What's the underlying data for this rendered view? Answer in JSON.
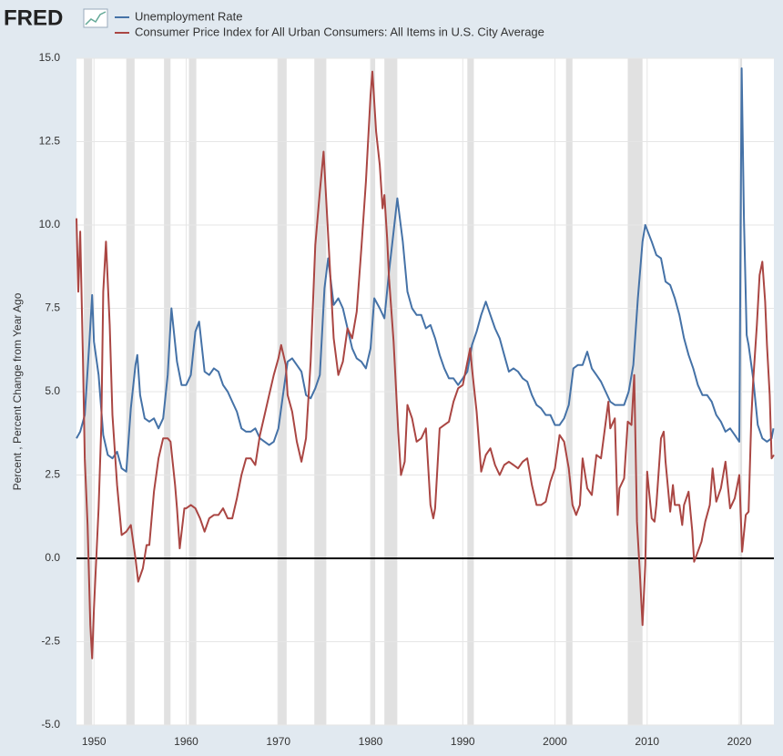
{
  "chart_data": {
    "type": "line",
    "logo": "FRED",
    "y_axis_label": "Percent , Percent Change from Year Ago",
    "xlim": [
      1948.1,
      2023.75
    ],
    "xticks": [
      1950,
      1960,
      1970,
      1980,
      1990,
      2000,
      2010,
      2020
    ],
    "ylim": [
      -5,
      15
    ],
    "yticks": [
      {
        "value": -5,
        "label": "-5.0"
      },
      {
        "value": -2.5,
        "label": "-2.5"
      },
      {
        "value": 0,
        "label": "0.0"
      },
      {
        "value": 2.5,
        "label": "2.5"
      },
      {
        "value": 5,
        "label": "5.0"
      },
      {
        "value": 7.5,
        "label": "7.5"
      },
      {
        "value": 10,
        "label": "10.0"
      },
      {
        "value": 12.5,
        "label": "12.5"
      },
      {
        "value": 15,
        "label": "15.0"
      }
    ],
    "grid": true,
    "recession_color": "#e1e1e1",
    "recessions": [
      [
        1948.9,
        1949.8
      ],
      [
        1953.5,
        1954.4
      ],
      [
        1957.6,
        1958.3
      ],
      [
        1960.3,
        1961.1
      ],
      [
        1969.9,
        1970.9
      ],
      [
        1973.9,
        1975.2
      ],
      [
        1980.0,
        1980.5
      ],
      [
        1981.5,
        1982.9
      ],
      [
        1990.5,
        1991.2
      ],
      [
        2001.2,
        2001.9
      ],
      [
        2007.9,
        2009.5
      ],
      [
        2020.1,
        2020.3
      ]
    ],
    "series": [
      {
        "name": "Unemployment Rate",
        "color": "#4572a7",
        "x": [
          1948.1,
          1948.5,
          1949.0,
          1949.5,
          1949.8,
          1950.0,
          1950.5,
          1951.0,
          1951.5,
          1952.0,
          1952.5,
          1953.0,
          1953.5,
          1954.0,
          1954.5,
          1954.7,
          1955.0,
          1955.5,
          1956.0,
          1956.5,
          1957.0,
          1957.5,
          1958.0,
          1958.4,
          1959.0,
          1959.5,
          1960.0,
          1960.5,
          1961.0,
          1961.4,
          1962.0,
          1962.5,
          1963.0,
          1963.5,
          1964.0,
          1964.5,
          1965.0,
          1965.5,
          1966.0,
          1966.5,
          1967.0,
          1967.5,
          1968.0,
          1968.5,
          1969.0,
          1969.5,
          1970.0,
          1970.5,
          1971.0,
          1971.5,
          1972.0,
          1972.5,
          1973.0,
          1973.5,
          1974.0,
          1974.5,
          1975.0,
          1975.4,
          1976.0,
          1976.5,
          1977.0,
          1977.5,
          1978.0,
          1978.5,
          1979.0,
          1979.5,
          1980.0,
          1980.4,
          1981.0,
          1981.5,
          1982.0,
          1982.5,
          1982.9,
          1983.5,
          1984.0,
          1984.5,
          1985.0,
          1985.5,
          1986.0,
          1986.5,
          1987.0,
          1987.5,
          1988.0,
          1988.5,
          1989.0,
          1989.5,
          1990.0,
          1990.5,
          1991.0,
          1991.5,
          1992.0,
          1992.5,
          1993.0,
          1993.5,
          1994.0,
          1994.5,
          1995.0,
          1995.5,
          1996.0,
          1996.5,
          1997.0,
          1997.5,
          1998.0,
          1998.5,
          1999.0,
          1999.5,
          2000.0,
          2000.5,
          2001.0,
          2001.5,
          2002.0,
          2002.5,
          2003.0,
          2003.5,
          2004.0,
          2004.5,
          2005.0,
          2005.5,
          2006.0,
          2006.5,
          2007.0,
          2007.5,
          2008.0,
          2008.5,
          2009.0,
          2009.5,
          2009.8,
          2010.5,
          2011.0,
          2011.5,
          2012.0,
          2012.5,
          2013.0,
          2013.5,
          2014.0,
          2014.5,
          2015.0,
          2015.5,
          2016.0,
          2016.5,
          2017.0,
          2017.5,
          2018.0,
          2018.5,
          2019.0,
          2019.5,
          2020.0,
          2020.25,
          2020.5,
          2020.8,
          2021.0,
          2021.5,
          2022.0,
          2022.5,
          2023.0,
          2023.5,
          2023.7
        ],
        "values": [
          3.6,
          3.8,
          4.3,
          6.5,
          7.9,
          6.5,
          5.5,
          3.7,
          3.1,
          3.0,
          3.2,
          2.7,
          2.6,
          4.5,
          5.8,
          6.1,
          4.9,
          4.2,
          4.1,
          4.2,
          3.9,
          4.2,
          5.5,
          7.5,
          5.9,
          5.2,
          5.2,
          5.5,
          6.8,
          7.1,
          5.6,
          5.5,
          5.7,
          5.6,
          5.2,
          5.0,
          4.7,
          4.4,
          3.9,
          3.8,
          3.8,
          3.9,
          3.6,
          3.5,
          3.4,
          3.5,
          3.9,
          4.9,
          5.9,
          6.0,
          5.8,
          5.6,
          4.9,
          4.8,
          5.1,
          5.5,
          8.1,
          9.0,
          7.6,
          7.8,
          7.5,
          6.9,
          6.3,
          6.0,
          5.9,
          5.7,
          6.3,
          7.8,
          7.5,
          7.2,
          8.6,
          9.8,
          10.8,
          9.5,
          8.0,
          7.5,
          7.3,
          7.3,
          6.9,
          7.0,
          6.6,
          6.1,
          5.7,
          5.4,
          5.4,
          5.2,
          5.4,
          5.6,
          6.4,
          6.8,
          7.3,
          7.7,
          7.3,
          6.9,
          6.6,
          6.1,
          5.6,
          5.7,
          5.6,
          5.4,
          5.3,
          4.9,
          4.6,
          4.5,
          4.3,
          4.3,
          4.0,
          4.0,
          4.2,
          4.6,
          5.7,
          5.8,
          5.8,
          6.2,
          5.7,
          5.5,
          5.3,
          5.0,
          4.7,
          4.6,
          4.6,
          4.6,
          5.0,
          5.8,
          7.8,
          9.5,
          10.0,
          9.5,
          9.1,
          9.0,
          8.3,
          8.2,
          7.8,
          7.3,
          6.6,
          6.1,
          5.7,
          5.2,
          4.9,
          4.9,
          4.7,
          4.3,
          4.1,
          3.8,
          3.9,
          3.7,
          3.5,
          14.7,
          10.2,
          6.7,
          6.4,
          5.4,
          4.0,
          3.6,
          3.5,
          3.6,
          3.9
        ]
      },
      {
        "name": "Consumer Price Index for All Urban Consumers: All Items in U.S. City Average",
        "color": "#aa4643",
        "x": [
          1948.1,
          1948.3,
          1948.5,
          1948.8,
          1949.0,
          1949.3,
          1949.6,
          1949.8,
          1950.0,
          1950.5,
          1950.8,
          1951.0,
          1951.3,
          1951.7,
          1952.0,
          1952.5,
          1953.0,
          1953.5,
          1954.0,
          1954.5,
          1954.8,
          1955.3,
          1955.7,
          1956.0,
          1956.5,
          1957.0,
          1957.5,
          1958.0,
          1958.3,
          1958.8,
          1959.0,
          1959.3,
          1959.8,
          1960.0,
          1960.5,
          1961.0,
          1961.5,
          1962.0,
          1962.5,
          1963.0,
          1963.5,
          1964.0,
          1964.5,
          1965.0,
          1965.5,
          1966.0,
          1966.5,
          1967.0,
          1967.5,
          1968.0,
          1968.5,
          1969.0,
          1969.5,
          1970.0,
          1970.3,
          1970.8,
          1971.0,
          1971.5,
          1972.0,
          1972.5,
          1973.0,
          1973.5,
          1974.0,
          1974.5,
          1974.9,
          1975.5,
          1976.0,
          1976.5,
          1977.0,
          1977.5,
          1978.0,
          1978.5,
          1979.0,
          1979.5,
          1980.0,
          1980.2,
          1980.6,
          1981.0,
          1981.3,
          1981.5,
          1981.8,
          1982.0,
          1982.5,
          1983.0,
          1983.3,
          1983.7,
          1984.0,
          1984.5,
          1985.0,
          1985.5,
          1986.0,
          1986.5,
          1986.8,
          1987.0,
          1987.5,
          1988.0,
          1988.5,
          1989.0,
          1989.5,
          1990.0,
          1990.8,
          1991.0,
          1991.5,
          1992.0,
          1992.5,
          1993.0,
          1993.5,
          1994.0,
          1994.5,
          1995.0,
          1995.5,
          1996.0,
          1996.5,
          1997.0,
          1997.5,
          1998.0,
          1998.5,
          1999.0,
          1999.5,
          2000.0,
          2000.5,
          2001.0,
          2001.5,
          2001.9,
          2002.3,
          2002.7,
          2003.0,
          2003.5,
          2004.0,
          2004.5,
          2005.0,
          2005.8,
          2006.0,
          2006.5,
          2006.8,
          2007.0,
          2007.5,
          2007.9,
          2008.3,
          2008.6,
          2008.9,
          2009.2,
          2009.5,
          2009.8,
          2010.0,
          2010.5,
          2010.8,
          2011.0,
          2011.5,
          2011.8,
          2012.0,
          2012.5,
          2012.8,
          2013.0,
          2013.5,
          2013.8,
          2014.0,
          2014.5,
          2014.9,
          2015.1,
          2015.5,
          2015.9,
          2016.3,
          2016.8,
          2017.1,
          2017.5,
          2018.0,
          2018.5,
          2019.0,
          2019.5,
          2020.0,
          2020.3,
          2020.7,
          2021.0,
          2021.3,
          2021.5,
          2021.9,
          2022.2,
          2022.5,
          2022.8,
          2023.0,
          2023.3,
          2023.5,
          2023.75
        ],
        "values": [
          10.2,
          8.0,
          9.8,
          6.0,
          3.0,
          1.0,
          -2.0,
          -3.0,
          -1.5,
          1.5,
          4.0,
          8.0,
          9.5,
          7.0,
          4.3,
          2.2,
          0.7,
          0.8,
          1.0,
          0.0,
          -0.7,
          -0.3,
          0.4,
          0.4,
          2.0,
          3.0,
          3.6,
          3.6,
          3.5,
          2.2,
          1.5,
          0.3,
          1.5,
          1.5,
          1.6,
          1.5,
          1.2,
          0.8,
          1.2,
          1.3,
          1.3,
          1.5,
          1.2,
          1.2,
          1.8,
          2.5,
          3.0,
          3.0,
          2.8,
          3.7,
          4.3,
          4.9,
          5.5,
          6.0,
          6.4,
          5.8,
          4.9,
          4.4,
          3.5,
          2.9,
          3.6,
          5.9,
          9.4,
          11.0,
          12.2,
          9.2,
          6.6,
          5.5,
          5.9,
          6.9,
          6.6,
          7.4,
          9.3,
          11.3,
          13.9,
          14.6,
          12.8,
          11.8,
          10.5,
          10.9,
          9.6,
          8.4,
          6.5,
          3.8,
          2.5,
          2.9,
          4.6,
          4.2,
          3.5,
          3.6,
          3.9,
          1.6,
          1.2,
          1.5,
          3.9,
          4.0,
          4.1,
          4.7,
          5.1,
          5.2,
          6.3,
          5.7,
          4.4,
          2.6,
          3.1,
          3.3,
          2.8,
          2.5,
          2.8,
          2.9,
          2.8,
          2.7,
          2.9,
          3.0,
          2.2,
          1.6,
          1.6,
          1.7,
          2.3,
          2.7,
          3.7,
          3.5,
          2.7,
          1.6,
          1.3,
          1.6,
          3.0,
          2.1,
          1.9,
          3.1,
          3.0,
          4.7,
          3.9,
          4.2,
          1.3,
          2.1,
          2.4,
          4.1,
          4.0,
          5.5,
          1.1,
          -0.4,
          -2.0,
          -0.2,
          2.6,
          1.2,
          1.1,
          1.6,
          3.6,
          3.8,
          2.9,
          1.4,
          2.2,
          1.6,
          1.6,
          1.0,
          1.6,
          2.0,
          0.8,
          -0.1,
          0.2,
          0.5,
          1.1,
          1.6,
          2.7,
          1.7,
          2.1,
          2.9,
          1.5,
          1.8,
          2.5,
          0.2,
          1.3,
          1.4,
          4.2,
          5.3,
          7.0,
          8.5,
          8.9,
          7.7,
          6.4,
          4.9,
          3.0,
          3.1
        ]
      }
    ]
  }
}
